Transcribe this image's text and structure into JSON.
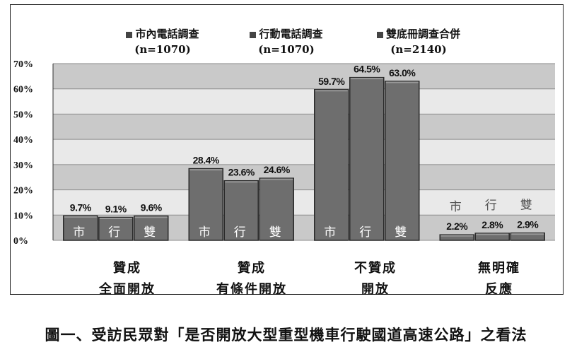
{
  "chart_data": {
    "type": "bar",
    "ylim": [
      0,
      70
    ],
    "yticks": [
      "0%",
      "10%",
      "20%",
      "30%",
      "40%",
      "50%",
      "60%",
      "70%"
    ],
    "categories": [
      [
        "贊成",
        "全面開放"
      ],
      [
        "贊成",
        "有條件開放"
      ],
      [
        "不贊成",
        "開放"
      ],
      [
        "無明確",
        "反應"
      ]
    ],
    "series": [
      {
        "name": "市內電話調查",
        "n": "(n=1070)",
        "short": "市",
        "values": [
          9.7,
          28.4,
          59.7,
          2.2
        ],
        "labels": [
          "9.7%",
          "28.4%",
          "59.7%",
          "2.2%"
        ]
      },
      {
        "name": "行動電話調查",
        "n": "(n=1070)",
        "short": "行",
        "values": [
          9.1,
          23.6,
          64.5,
          2.8
        ],
        "labels": [
          "9.1%",
          "23.6%",
          "64.5%",
          "2.8%"
        ]
      },
      {
        "name": "雙底冊調查合併",
        "n": "(n=2140)",
        "short": "雙",
        "values": [
          9.6,
          24.6,
          63.0,
          2.9
        ],
        "labels": [
          "9.6%",
          "24.6%",
          "63.0%",
          "2.9%"
        ]
      }
    ],
    "colors": {
      "bar": "#6e6e6e",
      "bar_edge": "#2a2a2a",
      "band_dark": "#c9c9c9",
      "band_light": "#e9e9e9",
      "grid": "#8a8a8a"
    }
  },
  "caption": "圖一、受訪民眾對「是否開放大型重型機車行駛國道高速公路」之看法"
}
